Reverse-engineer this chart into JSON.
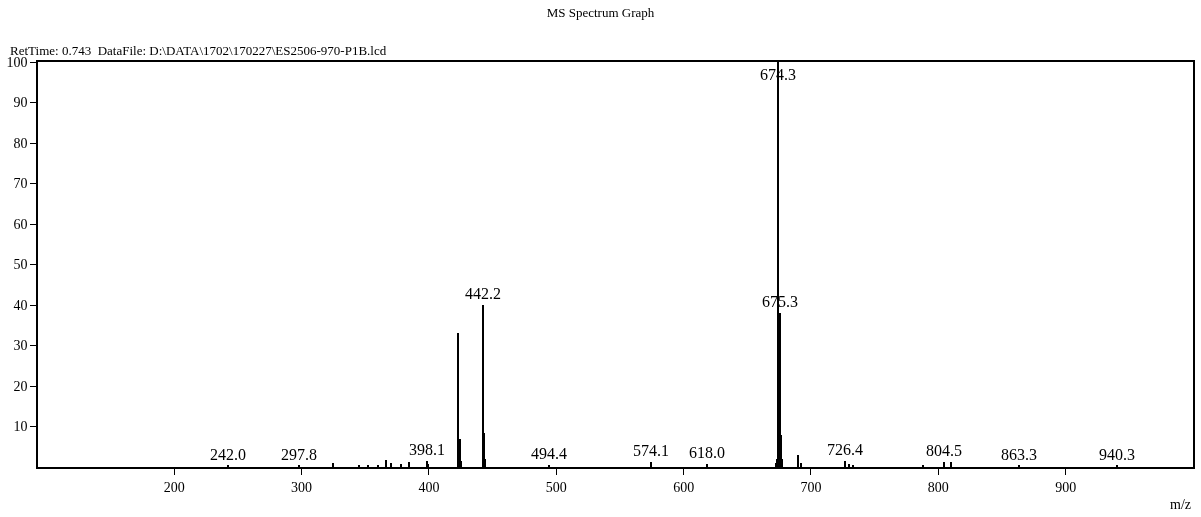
{
  "chart_data": {
    "type": "bar",
    "title": "MS Spectrum Graph",
    "subtitle": "RetTime: 0.743  DataFile: D:\\DATA\\1702\\170227\\ES2506-970-P1B.lcd",
    "xlabel": "m/z",
    "x": [
      242.0,
      297.8,
      325,
      345,
      352,
      360,
      366,
      370,
      378,
      384,
      398.1,
      399.1,
      423.2,
      424.2,
      425.2,
      442.2,
      443.2,
      444.2,
      494.4,
      574.1,
      618.0,
      672.3,
      673.3,
      674.3,
      675.3,
      676.3,
      677.3,
      690,
      692,
      726.4,
      730,
      733,
      788,
      804.5,
      810,
      863.3,
      940.3
    ],
    "values": [
      0.3,
      0.3,
      1.0,
      0.5,
      0.5,
      0.5,
      1.8,
      1.0,
      0.8,
      1.2,
      1.5,
      0.8,
      33,
      7,
      1.5,
      40,
      8.5,
      2,
      0.6,
      1.2,
      0.8,
      1,
      2,
      100,
      38,
      8,
      2,
      3,
      1,
      1.5,
      0.7,
      0.6,
      0.5,
      1.3,
      1.3,
      0.3,
      0.3
    ],
    "color": "#000000",
    "xlim": [
      93,
      1000
    ],
    "ylim": [
      0,
      100
    ],
    "xticks": [
      200,
      300,
      400,
      500,
      600,
      700,
      800,
      900
    ],
    "yticks": [
      10,
      20,
      30,
      40,
      50,
      60,
      70,
      80,
      90,
      100
    ],
    "annotations": [
      {
        "text": "242.0",
        "x": 242.0,
        "y": 0.3
      },
      {
        "text": "297.8",
        "x": 297.8,
        "y": 0.3
      },
      {
        "text": "398.1",
        "x": 398.1,
        "y": 1.5
      },
      {
        "text": "442.2",
        "x": 442.2,
        "y": 40
      },
      {
        "text": "494.4",
        "x": 494.4,
        "y": 0.6
      },
      {
        "text": "574.1",
        "x": 574.1,
        "y": 1.2
      },
      {
        "text": "618.0",
        "x": 618.0,
        "y": 0.8
      },
      {
        "text": "674.3",
        "x": 674.3,
        "y": 100
      },
      {
        "text": "675.3",
        "x": 675.3,
        "y": 38
      },
      {
        "text": "726.4",
        "x": 726.4,
        "y": 1.5
      },
      {
        "text": "804.5",
        "x": 804.5,
        "y": 1.3
      },
      {
        "text": "863.3",
        "x": 863.3,
        "y": 0.3
      },
      {
        "text": "940.3",
        "x": 940.3,
        "y": 0.3
      }
    ]
  }
}
